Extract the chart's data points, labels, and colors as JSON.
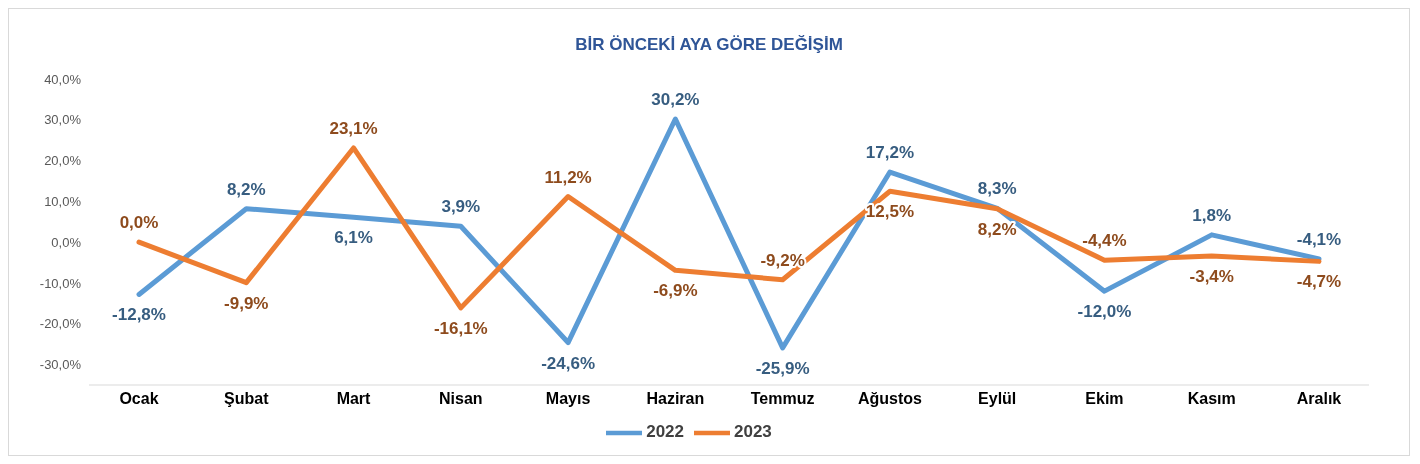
{
  "chart_data": {
    "type": "line",
    "title": "BİR ÖNCEKİ AYA GÖRE DEĞİŞİM",
    "categories": [
      "Ocak",
      "Şubat",
      "Mart",
      "Nisan",
      "Mayıs",
      "Haziran",
      "Temmuz",
      "Ağustos",
      "Eylül",
      "Ekim",
      "Kasım",
      "Aralık"
    ],
    "series": [
      {
        "name": "2022",
        "color": "#5b9bd5",
        "values": [
          -12.8,
          8.2,
          6.1,
          3.9,
          -24.6,
          30.2,
          -25.9,
          17.2,
          8.3,
          -12.0,
          1.8,
          -4.1
        ],
        "value_labels": [
          "-12,8%",
          "8,2%",
          "6,1%",
          "3,9%",
          "-24,6%",
          "30,2%",
          "-25,9%",
          "17,2%",
          "8,3%",
          "-12,0%",
          "1,8%",
          "-4,1%"
        ]
      },
      {
        "name": "2023",
        "color": "#ed7d31",
        "values": [
          0.0,
          -9.9,
          23.1,
          -16.1,
          11.2,
          -6.9,
          -9.2,
          12.5,
          8.2,
          -4.4,
          -3.4,
          -4.7
        ],
        "value_labels": [
          "0,0%",
          "-9,9%",
          "23,1%",
          "-16,1%",
          "11,2%",
          "-6,9%",
          "-9,2%",
          "12,5%",
          "8,2%",
          "-4,4%",
          "-3,4%",
          "-4,7%"
        ]
      }
    ],
    "ylim": [
      -35,
      40
    ],
    "yticks": [
      {
        "value": -30,
        "label": "-30,0%"
      },
      {
        "value": -20,
        "label": "-20,0%"
      },
      {
        "value": -10,
        "label": "-10,0%"
      },
      {
        "value": 0,
        "label": "0,0%"
      },
      {
        "value": 10,
        "label": "10,0%"
      },
      {
        "value": 20,
        "label": "20,0%"
      },
      {
        "value": 30,
        "label": "30,0%"
      },
      {
        "value": 40,
        "label": "40,0%"
      }
    ],
    "grid": false,
    "legend": "bottom",
    "marker": "none",
    "line_style": "solid"
  }
}
